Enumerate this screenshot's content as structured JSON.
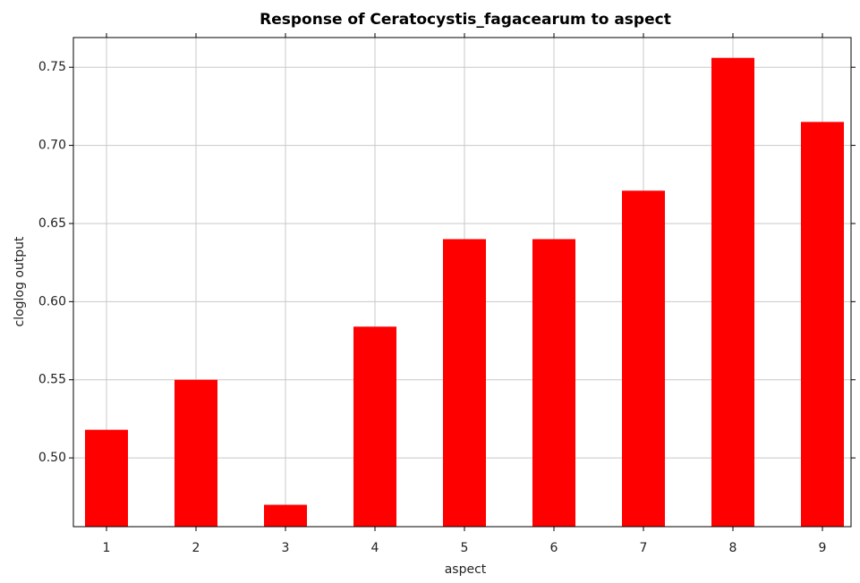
{
  "chart_data": {
    "type": "bar",
    "title": "Response of Ceratocystis_fagacearum to aspect",
    "x_label": "aspect",
    "y_label": "cloglog output",
    "categories": [
      "1",
      "2",
      "3",
      "4",
      "5",
      "6",
      "7",
      "8",
      "9"
    ],
    "values": [
      0.518,
      0.55,
      0.47,
      0.584,
      0.64,
      0.64,
      0.671,
      0.756,
      0.715
    ],
    "color": "#ff0000",
    "ylim": [
      0.456,
      0.769
    ],
    "yticks": [
      {
        "value": 0.5,
        "label": "0.50"
      },
      {
        "value": 0.55,
        "label": "0.55"
      },
      {
        "value": 0.6,
        "label": "0.60"
      },
      {
        "value": 0.65,
        "label": "0.65"
      },
      {
        "value": 0.7,
        "label": "0.70"
      },
      {
        "value": 0.75,
        "label": "0.75"
      }
    ],
    "grid": true
  }
}
